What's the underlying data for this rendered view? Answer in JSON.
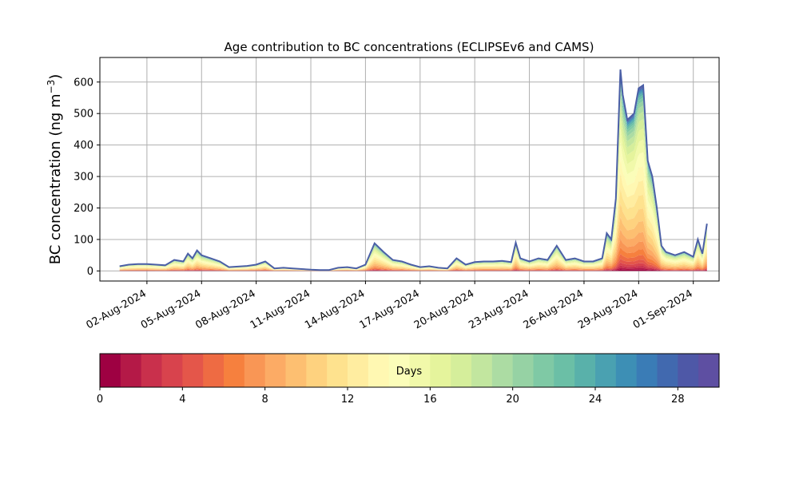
{
  "chart_data": [
    {
      "type": "area",
      "title": "Age contribution to BC concentrations (ECLIPSEv6 and CAMS)",
      "xlabel": "",
      "ylabel": "BC concentration (ng m",
      "ylabel_unit_sup": "−3",
      "ylabel_suffix": ")",
      "stacked": true,
      "x_ticks": [
        "02-Aug-2024",
        "05-Aug-2024",
        "08-Aug-2024",
        "11-Aug-2024",
        "14-Aug-2024",
        "17-Aug-2024",
        "20-Aug-2024",
        "23-Aug-2024",
        "26-Aug-2024",
        "29-Aug-2024",
        "01-Sep-2024"
      ],
      "xlim": [
        "2024-07-30T10:00",
        "2024-09-02T10:00"
      ],
      "y_ticks": [
        0,
        100,
        200,
        300,
        400,
        500,
        600
      ],
      "ylim": [
        -32,
        678
      ],
      "grid": true,
      "series_note": "30 stacked age bands (0–30 days); total concentration shown as top envelope",
      "total": {
        "x": [
          "2024-07-31T12:00",
          "2024-08-01T00:00",
          "2024-08-01T12:00",
          "2024-08-02T00:00",
          "2024-08-02T12:00",
          "2024-08-03T00:00",
          "2024-08-03T12:00",
          "2024-08-04T00:00",
          "2024-08-04T06:00",
          "2024-08-04T12:00",
          "2024-08-04T18:00",
          "2024-08-05T00:00",
          "2024-08-05T12:00",
          "2024-08-06T00:00",
          "2024-08-06T12:00",
          "2024-08-07T00:00",
          "2024-08-07T12:00",
          "2024-08-08T00:00",
          "2024-08-08T12:00",
          "2024-08-09T00:00",
          "2024-08-09T12:00",
          "2024-08-10T00:00",
          "2024-08-10T12:00",
          "2024-08-11T00:00",
          "2024-08-11T12:00",
          "2024-08-12T00:00",
          "2024-08-12T12:00",
          "2024-08-13T00:00",
          "2024-08-13T12:00",
          "2024-08-14T00:00",
          "2024-08-14T12:00",
          "2024-08-15T00:00",
          "2024-08-15T12:00",
          "2024-08-16T00:00",
          "2024-08-16T12:00",
          "2024-08-17T00:00",
          "2024-08-17T12:00",
          "2024-08-18T00:00",
          "2024-08-18T12:00",
          "2024-08-19T00:00",
          "2024-08-19T12:00",
          "2024-08-20T00:00",
          "2024-08-20T12:00",
          "2024-08-21T00:00",
          "2024-08-21T12:00",
          "2024-08-22T00:00",
          "2024-08-22T06:00",
          "2024-08-22T12:00",
          "2024-08-23T00:00",
          "2024-08-23T12:00",
          "2024-08-24T00:00",
          "2024-08-24T12:00",
          "2024-08-25T00:00",
          "2024-08-25T12:00",
          "2024-08-26T00:00",
          "2024-08-26T12:00",
          "2024-08-27T00:00",
          "2024-08-27T06:00",
          "2024-08-27T12:00",
          "2024-08-27T18:00",
          "2024-08-28T00:00",
          "2024-08-28T03:00",
          "2024-08-28T09:00",
          "2024-08-28T18:00",
          "2024-08-29T00:00",
          "2024-08-29T06:00",
          "2024-08-29T12:00",
          "2024-08-29T18:00",
          "2024-08-30T00:00",
          "2024-08-30T06:00",
          "2024-08-30T12:00",
          "2024-08-31T00:00",
          "2024-08-31T12:00",
          "2024-09-01T00:00",
          "2024-09-01T06:00",
          "2024-09-01T12:00",
          "2024-09-01T18:00"
        ],
        "y": [
          15,
          20,
          22,
          22,
          20,
          18,
          35,
          30,
          55,
          40,
          65,
          50,
          40,
          30,
          12,
          14,
          16,
          20,
          30,
          8,
          10,
          8,
          6,
          4,
          3,
          3,
          10,
          12,
          8,
          20,
          88,
          60,
          35,
          30,
          20,
          12,
          15,
          10,
          8,
          40,
          20,
          28,
          30,
          30,
          32,
          28,
          90,
          40,
          30,
          40,
          35,
          80,
          35,
          40,
          30,
          30,
          40,
          120,
          100,
          230,
          640,
          560,
          480,
          500,
          580,
          590,
          350,
          300,
          200,
          80,
          60,
          50,
          60,
          45,
          100,
          55,
          150
        ]
      },
      "colorbar": {
        "label": "Days",
        "ticks": [
          0,
          4,
          8,
          12,
          16,
          20,
          24,
          28
        ],
        "range": [
          0,
          30
        ],
        "orientation": "horizontal",
        "colors": [
          "#9e0142",
          "#b41947",
          "#c9304c",
          "#d8434d",
          "#e4564a",
          "#ee6b43",
          "#f6803e",
          "#f99655",
          "#fcab65",
          "#fdbf71",
          "#fed27f",
          "#fee28e",
          "#ffeda0",
          "#fff8b2",
          "#fbfdb9",
          "#f1f9aa",
          "#e5f49c",
          "#d5ee9b",
          "#c2e69f",
          "#acdca3",
          "#96d2a4",
          "#7fc9a5",
          "#6bbfa6",
          "#59b1aa",
          "#4aa1b1",
          "#3d8fb5",
          "#3a7cb6",
          "#4169af",
          "#4e58a7",
          "#5e4fa2"
        ]
      }
    }
  ]
}
